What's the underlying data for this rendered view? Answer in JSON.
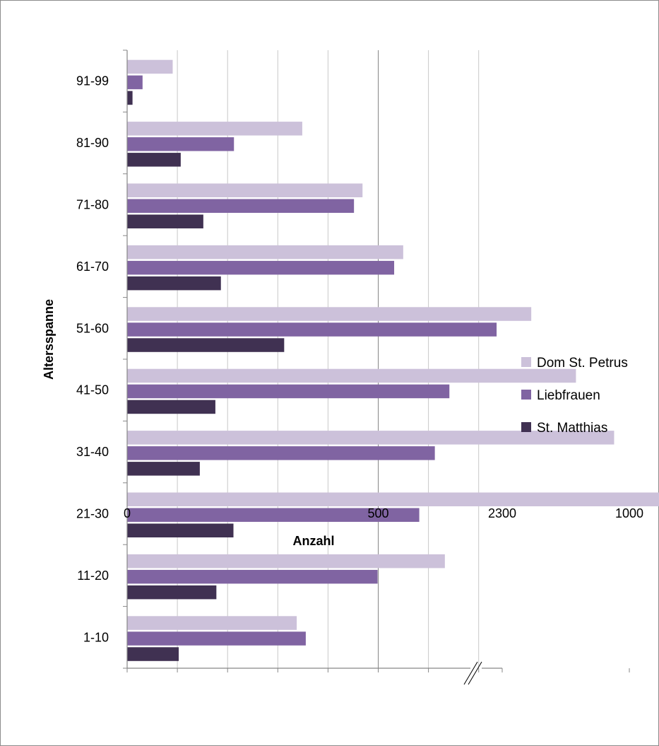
{
  "chart_data": {
    "type": "bar",
    "orientation": "horizontal",
    "title": "",
    "xlabel": "Anzahl",
    "ylabel": "Altersspanne",
    "categories": [
      "1-10",
      "11-20",
      "21-30",
      "31-40",
      "41-50",
      "51-60",
      "61-70",
      "71-80",
      "81-90",
      "91-99"
    ],
    "x_tick_labels": [
      "0",
      "500",
      "1000",
      "2300"
    ],
    "axis_break": "between 1000 and 2300",
    "grid": true,
    "legend_position": "right",
    "series": [
      {
        "name": "Dom St. Petrus",
        "color": "#ccc1da",
        "values": [
          337,
          632,
          2300,
          969,
          893,
          804,
          549,
          468,
          348,
          90
        ]
      },
      {
        "name": "Liebfrauen",
        "color": "#8064a2",
        "values": [
          355,
          498,
          581,
          612,
          641,
          735,
          531,
          451,
          212,
          30
        ]
      },
      {
        "name": "St. Matthias",
        "color": "#403152",
        "values": [
          102,
          177,
          211,
          144,
          175,
          312,
          186,
          151,
          106,
          10
        ]
      }
    ]
  }
}
